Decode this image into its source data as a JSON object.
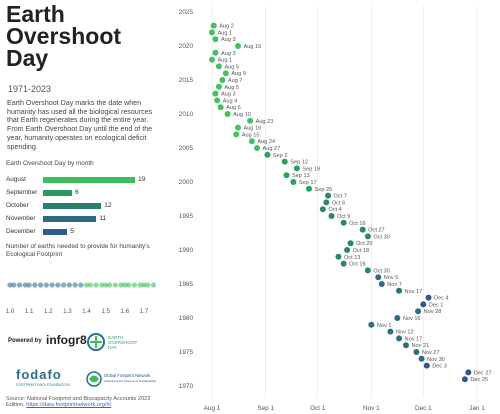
{
  "header": {
    "title": "Earth\nOvershoot\nDay",
    "years": "1971-2023",
    "description": "Earth Overshoot Day marks the date when humanity has used all the biological resources that Earth regenerates during the entire year. From Earth Overshoot Day until the end of the year, humanity operates on ecological deficit spending."
  },
  "month_chart": {
    "subtitle": "Earth Overshoot Day by month",
    "rows": [
      {
        "label": "August",
        "value": 19,
        "color": "#3dbd5c"
      },
      {
        "label": "September",
        "value": 6,
        "color": "#2a9a5e"
      },
      {
        "label": "October",
        "value": 12,
        "color": "#2b7f6e"
      },
      {
        "label": "November",
        "value": 11,
        "color": "#2d6b83"
      },
      {
        "label": "December",
        "value": 5,
        "color": "#2f5a8c"
      }
    ]
  },
  "earths_chart": {
    "subtitle": "Number of earths needed to provide for humanity's Ecological Footprint",
    "ticks": [
      "1.0",
      "1.1",
      "1.2",
      "1.3",
      "1.4",
      "1.5",
      "1.6",
      "1.7"
    ],
    "range": [
      0.95,
      1.78
    ]
  },
  "footer": {
    "powered_by": "Powered by",
    "brand": "infogr8",
    "eod_logo_text": "EARTH OVERSHOOT DAY",
    "fodafo": "fodafo",
    "fodafo_sub": "FOOTPRINT DATA FOUNDATION",
    "gfn_text": "Global Footprint Network",
    "gfn_sub": "Advancing the Science of Sustainability",
    "source_text": "Source: National Footprint and Biocapacity Accounts 2023 Edition, ",
    "source_link": "https://data.footprintnetwork.org/#/"
  },
  "chart_data": {
    "type": "scatter",
    "title": "",
    "xlabel": "",
    "ylabel": "",
    "x_ticks": [
      "Aug 1",
      "Sep 1",
      "Oct 1",
      "Nov 1",
      "Dec 1",
      "Jan 1"
    ],
    "y_ticks": [
      1970,
      1975,
      1980,
      1985,
      1990,
      1995,
      2000,
      2005,
      2010,
      2015,
      2020,
      2025
    ],
    "ylim": [
      1969,
      2026
    ],
    "colors": {
      "aug": "#43c05f",
      "sep": "#2aa05c",
      "oct": "#2b866a",
      "nov": "#2d6e80",
      "dec": "#30588d"
    },
    "points": [
      {
        "year": 2023,
        "label": "Aug 2"
      },
      {
        "year": 2022,
        "label": "Aug 1"
      },
      {
        "year": 2021,
        "label": "Aug 3"
      },
      {
        "year": 2020,
        "label": "Aug 16"
      },
      {
        "year": 2019,
        "label": "Aug 3"
      },
      {
        "year": 2018,
        "label": "Aug 1"
      },
      {
        "year": 2017,
        "label": "Aug 5"
      },
      {
        "year": 2016,
        "label": "Aug 9"
      },
      {
        "year": 2015,
        "label": "Aug 7"
      },
      {
        "year": 2014,
        "label": "Aug 5"
      },
      {
        "year": 2013,
        "label": "Aug 3"
      },
      {
        "year": 2012,
        "label": "Aug 4"
      },
      {
        "year": 2011,
        "label": "Aug 6"
      },
      {
        "year": 2010,
        "label": "Aug 10"
      },
      {
        "year": 2009,
        "label": "Aug 23"
      },
      {
        "year": 2008,
        "label": "Aug 16"
      },
      {
        "year": 2007,
        "label": "Aug 15"
      },
      {
        "year": 2006,
        "label": "Aug 24"
      },
      {
        "year": 2005,
        "label": "Aug 27"
      },
      {
        "year": 2004,
        "label": "Sep 2"
      },
      {
        "year": 2003,
        "label": "Sep 12"
      },
      {
        "year": 2002,
        "label": "Sep 19"
      },
      {
        "year": 2001,
        "label": "Sep 13"
      },
      {
        "year": 2000,
        "label": "Sep 17"
      },
      {
        "year": 1999,
        "label": "Sep 26"
      },
      {
        "year": 1998,
        "label": "Oct 7"
      },
      {
        "year": 1997,
        "label": "Oct 6"
      },
      {
        "year": 1996,
        "label": "Oct 4"
      },
      {
        "year": 1995,
        "label": "Oct 9"
      },
      {
        "year": 1994,
        "label": "Oct 16"
      },
      {
        "year": 1993,
        "label": "Oct 27"
      },
      {
        "year": 1992,
        "label": "Oct 30"
      },
      {
        "year": 1991,
        "label": "Oct 20"
      },
      {
        "year": 1990,
        "label": "Oct 18"
      },
      {
        "year": 1989,
        "label": "Oct 13"
      },
      {
        "year": 1988,
        "label": "Oct 16"
      },
      {
        "year": 1987,
        "label": "Oct 30"
      },
      {
        "year": 1986,
        "label": "Nov 5"
      },
      {
        "year": 1985,
        "label": "Nov 7"
      },
      {
        "year": 1984,
        "label": "Nov 17"
      },
      {
        "year": 1983,
        "label": "Dec 4"
      },
      {
        "year": 1982,
        "label": "Dec 1"
      },
      {
        "year": 1981,
        "label": "Nov 28"
      },
      {
        "year": 1980,
        "label": "Nov 16"
      },
      {
        "year": 1979,
        "label": "Nov 1"
      },
      {
        "year": 1978,
        "label": "Nov 12"
      },
      {
        "year": 1977,
        "label": "Nov 17"
      },
      {
        "year": 1976,
        "label": "Nov 21"
      },
      {
        "year": 1975,
        "label": "Nov 27"
      },
      {
        "year": 1974,
        "label": "Nov 30"
      },
      {
        "year": 1973,
        "label": "Dec 3"
      },
      {
        "year": 1972,
        "label": "Dec 27"
      },
      {
        "year": 1971,
        "label": "Dec 25"
      }
    ]
  }
}
